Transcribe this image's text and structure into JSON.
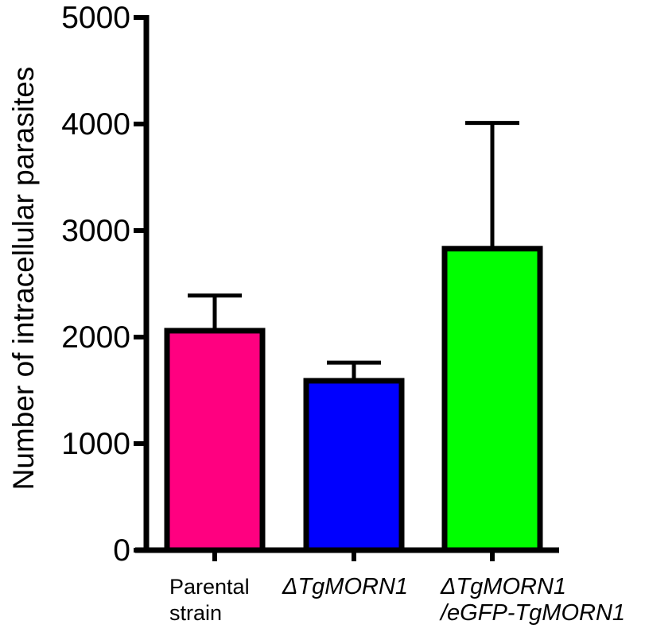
{
  "chart_data": {
    "type": "bar",
    "title": "",
    "xlabel": "",
    "ylabel": "Number of intracellular parasites",
    "ylim": [
      0,
      5000
    ],
    "yticks": [
      0,
      1000,
      2000,
      3000,
      4000,
      5000
    ],
    "grid": false,
    "categories": [
      {
        "lines": [
          "Parental",
          "strain"
        ],
        "italic": false
      },
      {
        "lines": [
          "ΔTgMORN1"
        ],
        "italic": true
      },
      {
        "lines": [
          "ΔTgMORN1",
          "/eGFP-TgMORN1"
        ],
        "italic": true
      }
    ],
    "values": [
      2060,
      1590,
      2830
    ],
    "error_upper": [
      2390,
      1760,
      4010
    ],
    "colors": [
      "#ff0080",
      "#0000ff",
      "#00ff00"
    ]
  }
}
